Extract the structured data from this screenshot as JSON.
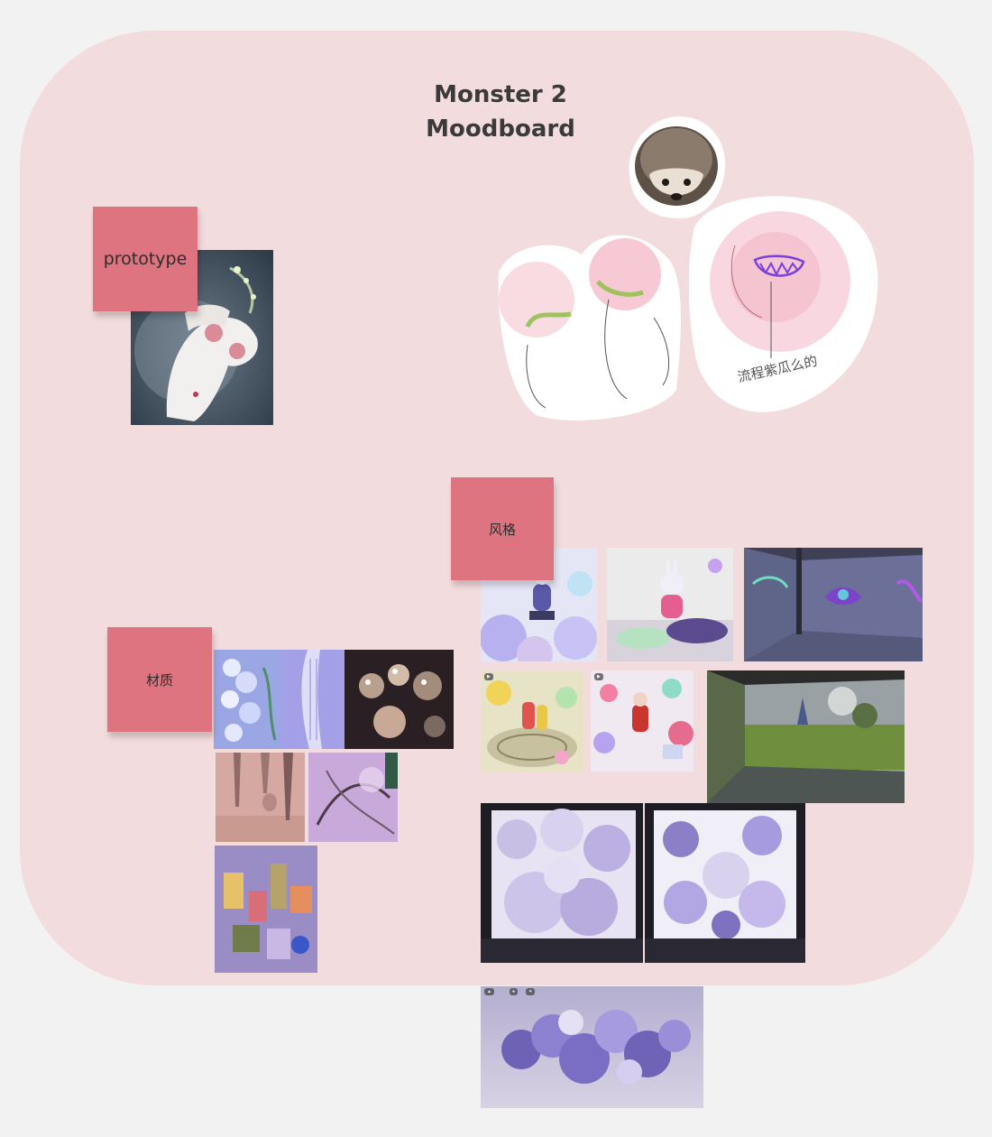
{
  "board": {
    "title_line1": "Monster 2",
    "title_line2": "Moodboard",
    "background_color": "#f3dcdd"
  },
  "sticky_notes": {
    "prototype": "prototype",
    "style": "风格",
    "material": "材质",
    "color": "#dd7480"
  },
  "sketch": {
    "caption": "流程紫瓜么的"
  },
  "images": {
    "prototype": [
      "fox-spirit-illustration"
    ],
    "reference": [
      "hedgehog-photo",
      "monster-sketch"
    ],
    "style": [
      "lavender-character-scene",
      "bunny-character-room",
      "immersive-projection-room",
      "candy-character-scene-1",
      "candy-character-scene-2",
      "projection-landscape-room",
      "cloud-sculpture-box-1",
      "cloud-sculpture-box-2",
      "flower-cluster-sculpture"
    ],
    "material": [
      "glass-flower-render",
      "glass-tube-render",
      "chrome-bubble-render",
      "pink-stalactite-render",
      "iridescent-curve-render",
      "toy-city-render"
    ]
  }
}
